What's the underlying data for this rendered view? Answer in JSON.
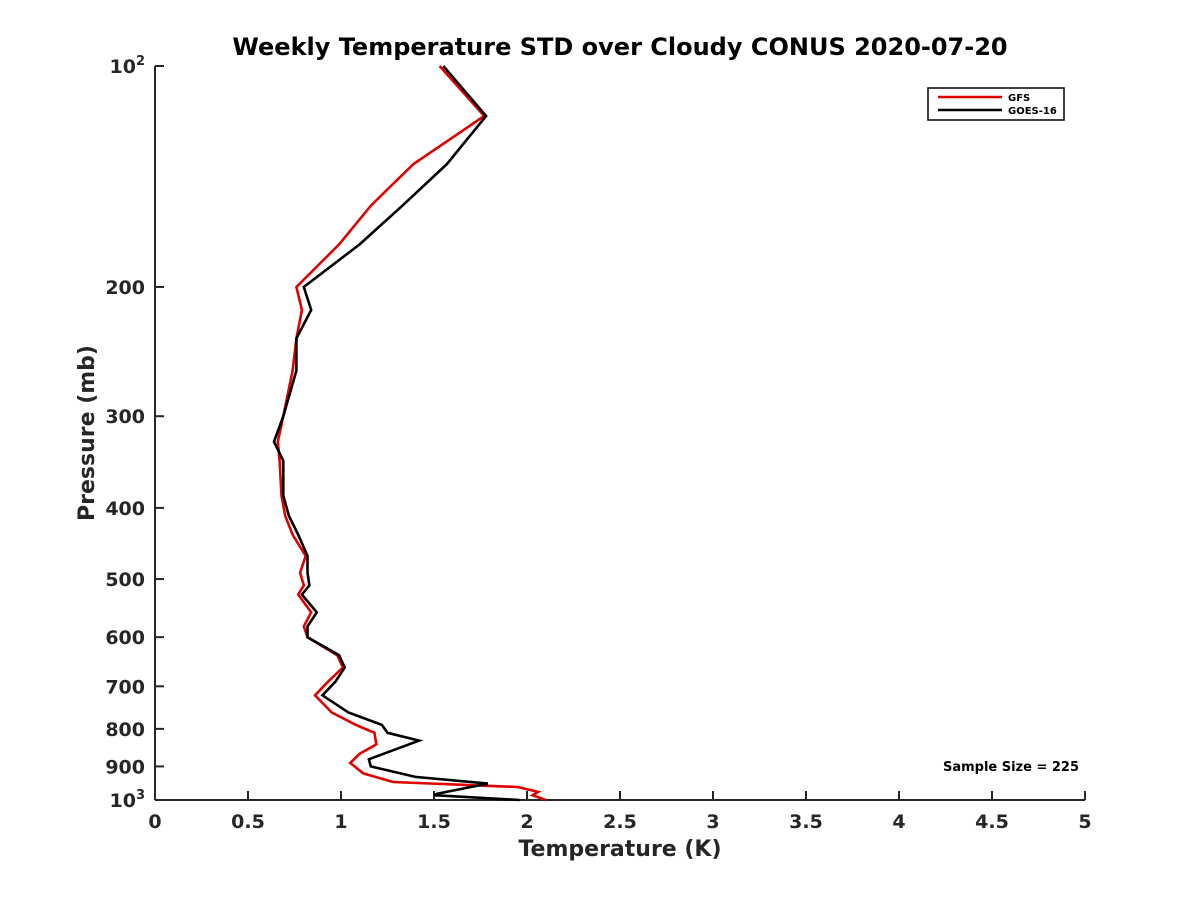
{
  "chart_data": {
    "type": "line",
    "title": "Weekly Temperature STD over Cloudy CONUS 2020-07-20",
    "xlabel": "Temperature (K)",
    "ylabel": "Pressure (mb)",
    "xlim": [
      0,
      5
    ],
    "ylim": [
      100,
      1000
    ],
    "y_scale": "log",
    "y_reversed": true,
    "x_ticks": [
      "0",
      "0.5",
      "1",
      "1.5",
      "2",
      "2.5",
      "3",
      "3.5",
      "4",
      "4.5",
      "5"
    ],
    "y_ticks": [
      {
        "value": 100,
        "base": "10",
        "exp": "2"
      },
      {
        "value": 200,
        "label": "200"
      },
      {
        "value": 300,
        "label": "300"
      },
      {
        "value": 400,
        "label": "400"
      },
      {
        "value": 500,
        "label": "500"
      },
      {
        "value": 600,
        "label": "600"
      },
      {
        "value": 700,
        "label": "700"
      },
      {
        "value": 800,
        "label": "800"
      },
      {
        "value": 900,
        "label": "900"
      },
      {
        "value": 1000,
        "base": "10",
        "exp": "3"
      }
    ],
    "grid": false,
    "legend_position": "top-right",
    "annotation": "Sample Size = 225",
    "series": [
      {
        "name": "GFS",
        "color": "#e00000",
        "points": [
          [
            1.53,
            100
          ],
          [
            1.77,
            117
          ],
          [
            1.39,
            136
          ],
          [
            1.16,
            155
          ],
          [
            0.99,
            175
          ],
          [
            0.76,
            200
          ],
          [
            0.79,
            215
          ],
          [
            0.76,
            235
          ],
          [
            0.74,
            260
          ],
          [
            0.69,
            300
          ],
          [
            0.66,
            325
          ],
          [
            0.67,
            345
          ],
          [
            0.68,
            385
          ],
          [
            0.7,
            410
          ],
          [
            0.74,
            435
          ],
          [
            0.81,
            465
          ],
          [
            0.78,
            490
          ],
          [
            0.8,
            510
          ],
          [
            0.77,
            525
          ],
          [
            0.84,
            555
          ],
          [
            0.8,
            580
          ],
          [
            0.82,
            600
          ],
          [
            0.98,
            635
          ],
          [
            1.01,
            660
          ],
          [
            0.93,
            690
          ],
          [
            0.86,
            720
          ],
          [
            0.95,
            760
          ],
          [
            1.08,
            790
          ],
          [
            1.18,
            810
          ],
          [
            1.19,
            840
          ],
          [
            1.1,
            865
          ],
          [
            1.05,
            890
          ],
          [
            1.12,
            920
          ],
          [
            1.28,
            945
          ],
          [
            1.95,
            960
          ],
          [
            2.06,
            975
          ],
          [
            2.03,
            985
          ],
          [
            2.1,
            1000
          ]
        ]
      },
      {
        "name": "GOES-16",
        "color": "#000000",
        "points": [
          [
            1.55,
            100
          ],
          [
            1.78,
            117
          ],
          [
            1.57,
            136
          ],
          [
            1.33,
            155
          ],
          [
            1.1,
            175
          ],
          [
            0.8,
            200
          ],
          [
            0.84,
            215
          ],
          [
            0.76,
            235
          ],
          [
            0.76,
            260
          ],
          [
            0.69,
            300
          ],
          [
            0.64,
            325
          ],
          [
            0.69,
            345
          ],
          [
            0.69,
            385
          ],
          [
            0.72,
            410
          ],
          [
            0.77,
            435
          ],
          [
            0.82,
            465
          ],
          [
            0.82,
            490
          ],
          [
            0.83,
            510
          ],
          [
            0.79,
            525
          ],
          [
            0.87,
            555
          ],
          [
            0.82,
            580
          ],
          [
            0.82,
            600
          ],
          [
            0.99,
            635
          ],
          [
            1.02,
            660
          ],
          [
            0.97,
            690
          ],
          [
            0.9,
            720
          ],
          [
            1.04,
            760
          ],
          [
            1.22,
            790
          ],
          [
            1.25,
            810
          ],
          [
            1.42,
            830
          ],
          [
            1.31,
            850
          ],
          [
            1.15,
            880
          ],
          [
            1.16,
            900
          ],
          [
            1.4,
            930
          ],
          [
            1.79,
            950
          ],
          [
            1.52,
            980
          ],
          [
            1.5,
            985
          ],
          [
            1.96,
            1000
          ]
        ]
      }
    ]
  }
}
